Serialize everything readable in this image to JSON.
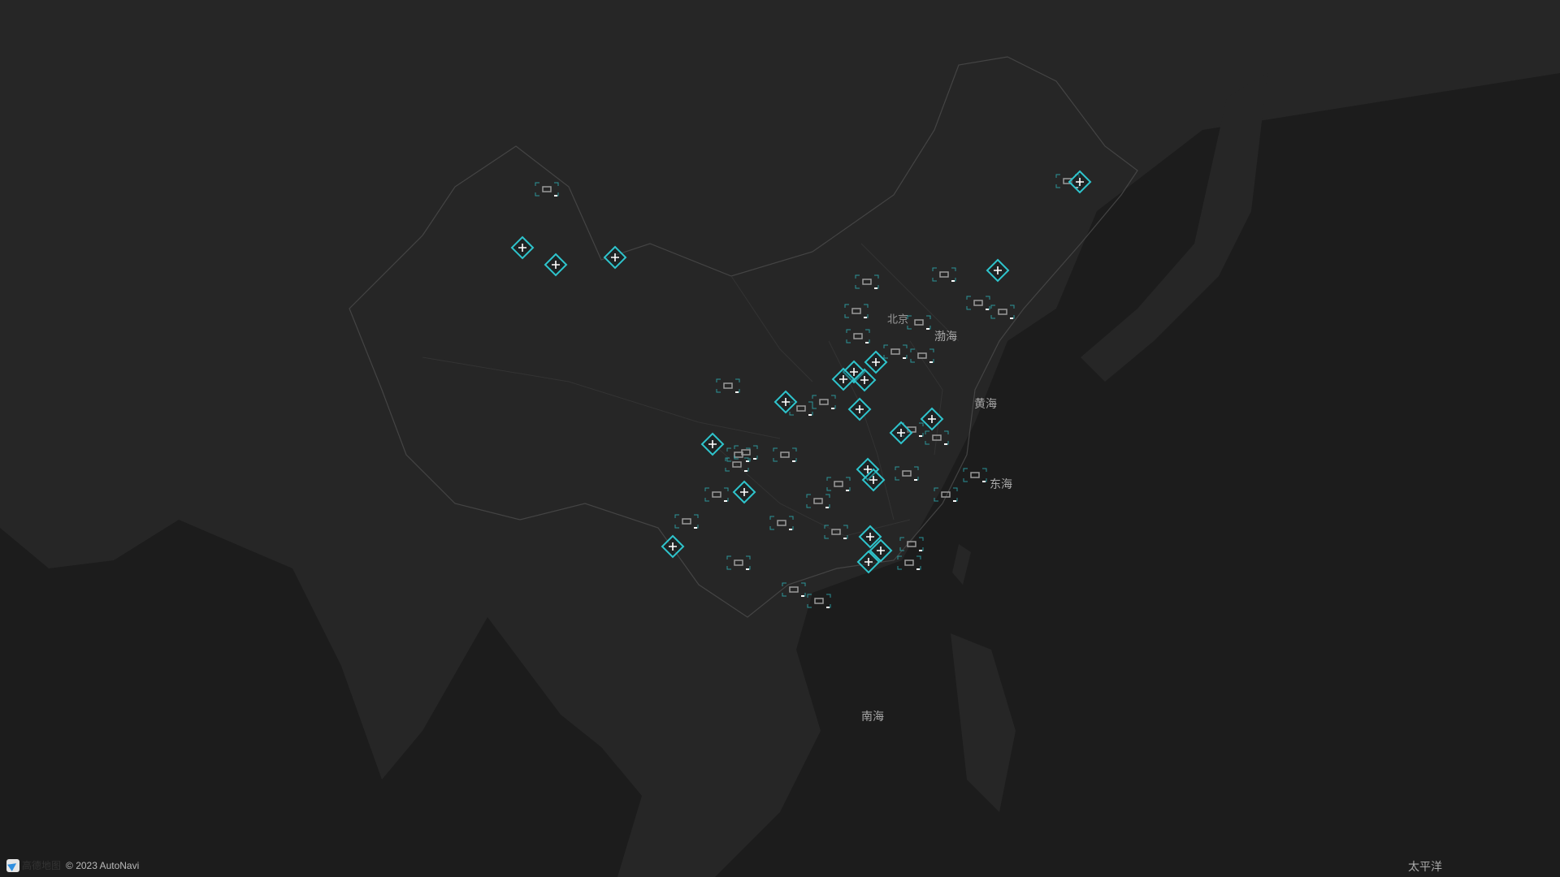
{
  "map": {
    "colors": {
      "sea": "#1c1c1c",
      "land": "#262626",
      "border": "#3a3a3a",
      "marker_accent": "#2fc4cc",
      "marker_cross": "#ffffff",
      "camera_body": "#9a9a9a"
    },
    "marker_icons": {
      "primary": "diamond-plus-icon",
      "secondary": "camera-icon"
    },
    "labels": {
      "beijing": "北京",
      "bohai": "渤海",
      "huanghai": "黄海",
      "donghai": "东海",
      "nanhai": "南海",
      "taipingyang": "太平洋"
    }
  },
  "attribution": {
    "logo_text": "高德地图",
    "copyright": "© 2023 AutoNavi"
  }
}
